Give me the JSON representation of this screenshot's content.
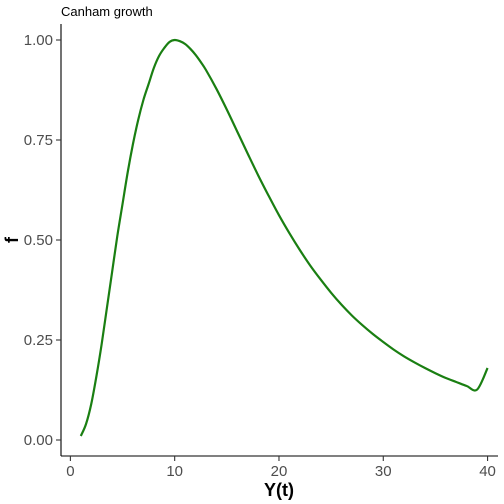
{
  "chart_data": {
    "type": "line",
    "title": "Canham growth",
    "xlabel": "Y(t)",
    "ylabel": "f",
    "xlim": [
      -0.9,
      41.0
    ],
    "ylim": [
      -0.04,
      1.04
    ],
    "grid": false,
    "legend": "none",
    "x_ticks": [
      0,
      10,
      20,
      30,
      40
    ],
    "x_tick_labels": [
      "0",
      "10",
      "20",
      "30",
      "40"
    ],
    "y_ticks": [
      0,
      0.25,
      0.5,
      0.75,
      1.0
    ],
    "y_tick_labels": [
      "0.00",
      "0.25",
      "0.50",
      "0.75",
      "1.00"
    ],
    "series": [
      {
        "color": "#1a7f12",
        "x": [
          1,
          1.5,
          2,
          2.5,
          3,
          3.5,
          4,
          4.5,
          5,
          5.5,
          6,
          6.5,
          7,
          7.5,
          8,
          8.5,
          9,
          9.5,
          10,
          10.5,
          11,
          11.5,
          12,
          12.5,
          13,
          14,
          15,
          16,
          17,
          18,
          19,
          20,
          21,
          22,
          23,
          24,
          25,
          26,
          27,
          28,
          29,
          30,
          31,
          32,
          33,
          34,
          35,
          36,
          37,
          38,
          39,
          40
        ],
        "y": [
          0.01,
          0.04,
          0.09,
          0.16,
          0.24,
          0.33,
          0.42,
          0.51,
          0.59,
          0.67,
          0.74,
          0.8,
          0.85,
          0.89,
          0.93,
          0.96,
          0.98,
          0.995,
          1.0,
          0.997,
          0.99,
          0.978,
          0.963,
          0.945,
          0.925,
          0.878,
          0.826,
          0.771,
          0.716,
          0.662,
          0.611,
          0.562,
          0.517,
          0.475,
          0.436,
          0.401,
          0.368,
          0.338,
          0.311,
          0.287,
          0.265,
          0.245,
          0.226,
          0.209,
          0.194,
          0.18,
          0.167,
          0.155,
          0.145,
          0.135,
          0.126,
          0.18
        ]
      }
    ]
  }
}
